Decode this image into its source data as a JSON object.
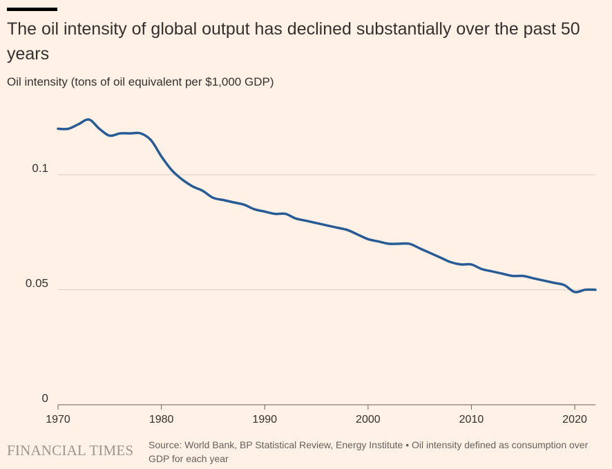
{
  "header": {
    "title": "The oil intensity of global output has declined substantially over the past 50 years",
    "subtitle": "Oil intensity (tons of oil equivalent per $1,000 GDP)"
  },
  "footer": {
    "brand": "FINANCIAL TIMES",
    "source": "Source: World Bank, BP Statistical Review, Energy Institute • Oil intensity defined as consumption over GDP for each year"
  },
  "colors": {
    "background": "#fff1e5",
    "line": "#265b96",
    "gridline": "#d9cdc3",
    "axis": "#66605c",
    "text": "#33302e"
  },
  "chart_data": {
    "type": "line",
    "title": "The oil intensity of global output has declined substantially over the past 50 years",
    "ylabel": "Oil intensity (tons of oil equivalent per $1,000 GDP)",
    "xlim": [
      1970,
      2022
    ],
    "ylim": [
      0,
      0.12
    ],
    "x_ticks": [
      1970,
      1980,
      1990,
      2000,
      2010,
      2020
    ],
    "y_ticks": [
      0,
      0.05,
      0.1
    ],
    "y_tick_labels": [
      "0",
      "0.05",
      "0.1"
    ],
    "grid": "horizontal",
    "series": [
      {
        "x": [
          1970,
          1971,
          1972,
          1973,
          1974,
          1975,
          1976,
          1977,
          1978,
          1979,
          1980,
          1981,
          1982,
          1983,
          1984,
          1985,
          1986,
          1987,
          1988,
          1989,
          1990,
          1991,
          1992,
          1993,
          1994,
          1995,
          1996,
          1997,
          1998,
          1999,
          2000,
          2001,
          2002,
          2003,
          2004,
          2005,
          2006,
          2007,
          2008,
          2009,
          2010,
          2011,
          2012,
          2013,
          2014,
          2015,
          2016,
          2017,
          2018,
          2019,
          2020,
          2021,
          2022
        ],
        "y": [
          0.12,
          0.12,
          0.122,
          0.124,
          0.12,
          0.117,
          0.118,
          0.118,
          0.118,
          0.115,
          0.108,
          0.102,
          0.098,
          0.095,
          0.093,
          0.09,
          0.089,
          0.088,
          0.087,
          0.085,
          0.084,
          0.083,
          0.083,
          0.081,
          0.08,
          0.079,
          0.078,
          0.077,
          0.076,
          0.074,
          0.072,
          0.071,
          0.07,
          0.07,
          0.07,
          0.068,
          0.066,
          0.064,
          0.062,
          0.061,
          0.061,
          0.059,
          0.058,
          0.057,
          0.056,
          0.056,
          0.055,
          0.054,
          0.053,
          0.052,
          0.049,
          0.05,
          0.05
        ]
      }
    ]
  }
}
